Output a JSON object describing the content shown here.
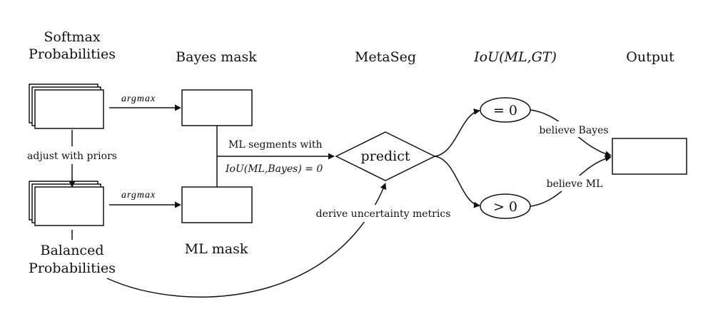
{
  "headers": {
    "softmax_line1": "Softmax",
    "softmax_line2": "Probabilities",
    "bayes_mask": "Bayes mask",
    "metaseg": "MetaSeg",
    "iou_ml_gt": "IoU(ML,GT)",
    "output": "Output"
  },
  "labels": {
    "argmax_top": "argmax",
    "argmax_bottom": "argmax",
    "adjust_with_priors": "adjust with priors",
    "ml_segments_with": "ML segments with",
    "iou_ml_bayes": "IoU(ML,Bayes) = 0",
    "predict": "predict",
    "derive_uncertainty_metrics": "derive uncertainty metrics",
    "eq_zero": "= 0",
    "gt_zero": "> 0",
    "believe_bayes": "believe Bayes",
    "believe_ml": "believe ML",
    "ml_mask": "ML mask",
    "balanced_line1": "Balanced",
    "balanced_line2": "Probabilities"
  }
}
